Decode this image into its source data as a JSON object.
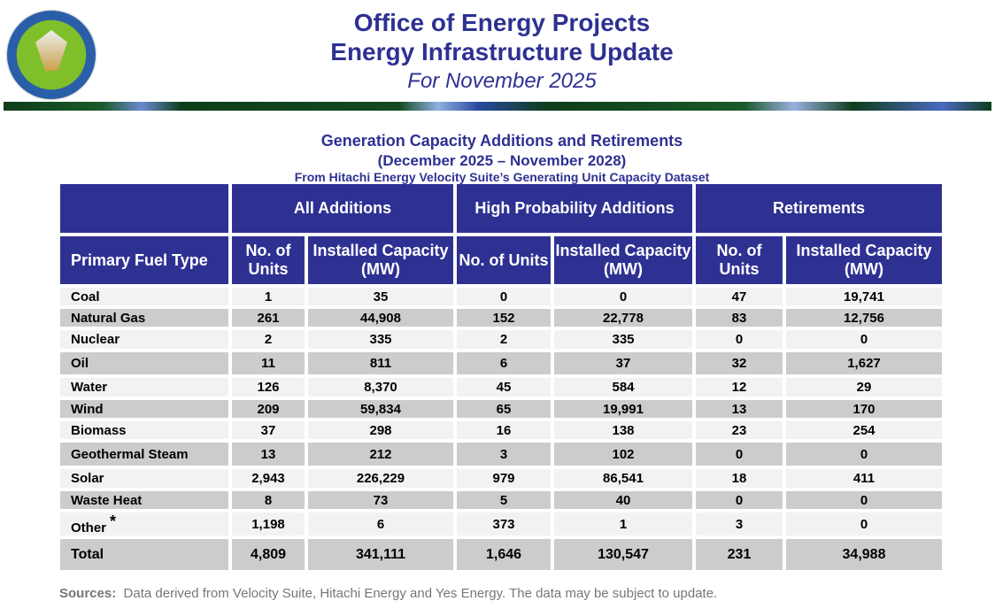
{
  "header": {
    "seal_text": "Department of Energy · Federal Energy Regulatory Commission",
    "title1": "Office of Energy Projects",
    "title2": "Energy Infrastructure Update",
    "subtitle": "For November 2025"
  },
  "section": {
    "title": "Generation Capacity Additions and Retirements",
    "period": "(December 2025 – November 2028)",
    "source_line": "From Hitachi Energy Velocity Suite’s Generating Unit Capacity Dataset"
  },
  "table": {
    "groups": [
      "All Additions",
      "High Probability Additions",
      "Retirements"
    ],
    "columns": [
      "Primary Fuel Type",
      "No. of Units",
      "Installed Capacity (MW)",
      "No. of Units",
      "Installed Capacity (MW)",
      "No. of Units",
      "Installed Capacity (MW)"
    ],
    "rows": [
      [
        "Coal",
        "1",
        "35",
        "0",
        "0",
        "47",
        "19,741"
      ],
      [
        "Natural Gas",
        "261",
        "44,908",
        "152",
        "22,778",
        "83",
        "12,756"
      ],
      [
        "Nuclear",
        "2",
        "335",
        "2",
        "335",
        "0",
        "0"
      ],
      [
        "Oil",
        "11",
        "811",
        "6",
        "37",
        "32",
        "1,627"
      ],
      [
        "Water",
        "126",
        "8,370",
        "45",
        "584",
        "12",
        "29"
      ],
      [
        "Wind",
        "209",
        "59,834",
        "65",
        "19,991",
        "13",
        "170"
      ],
      [
        "Biomass",
        "37",
        "298",
        "16",
        "138",
        "23",
        "254"
      ],
      [
        "Geothermal Steam",
        "13",
        "212",
        "3",
        "102",
        "0",
        "0"
      ],
      [
        "Solar",
        "2,943",
        "226,229",
        "979",
        "86,541",
        "18",
        "411"
      ],
      [
        "Waste Heat",
        "8",
        "73",
        "5",
        "40",
        "0",
        "0"
      ],
      [
        "Other",
        "1,198",
        "6",
        "373",
        "1",
        "3",
        "0"
      ],
      [
        "Total",
        "4,809",
        "341,111",
        "1,646",
        "130,547",
        "231",
        "34,988"
      ]
    ],
    "other_marker": "*"
  },
  "footer": {
    "label": "Sources:",
    "text": "Data derived from Velocity Suite, Hitachi Energy and Yes Energy.  The data may be subject to update."
  }
}
